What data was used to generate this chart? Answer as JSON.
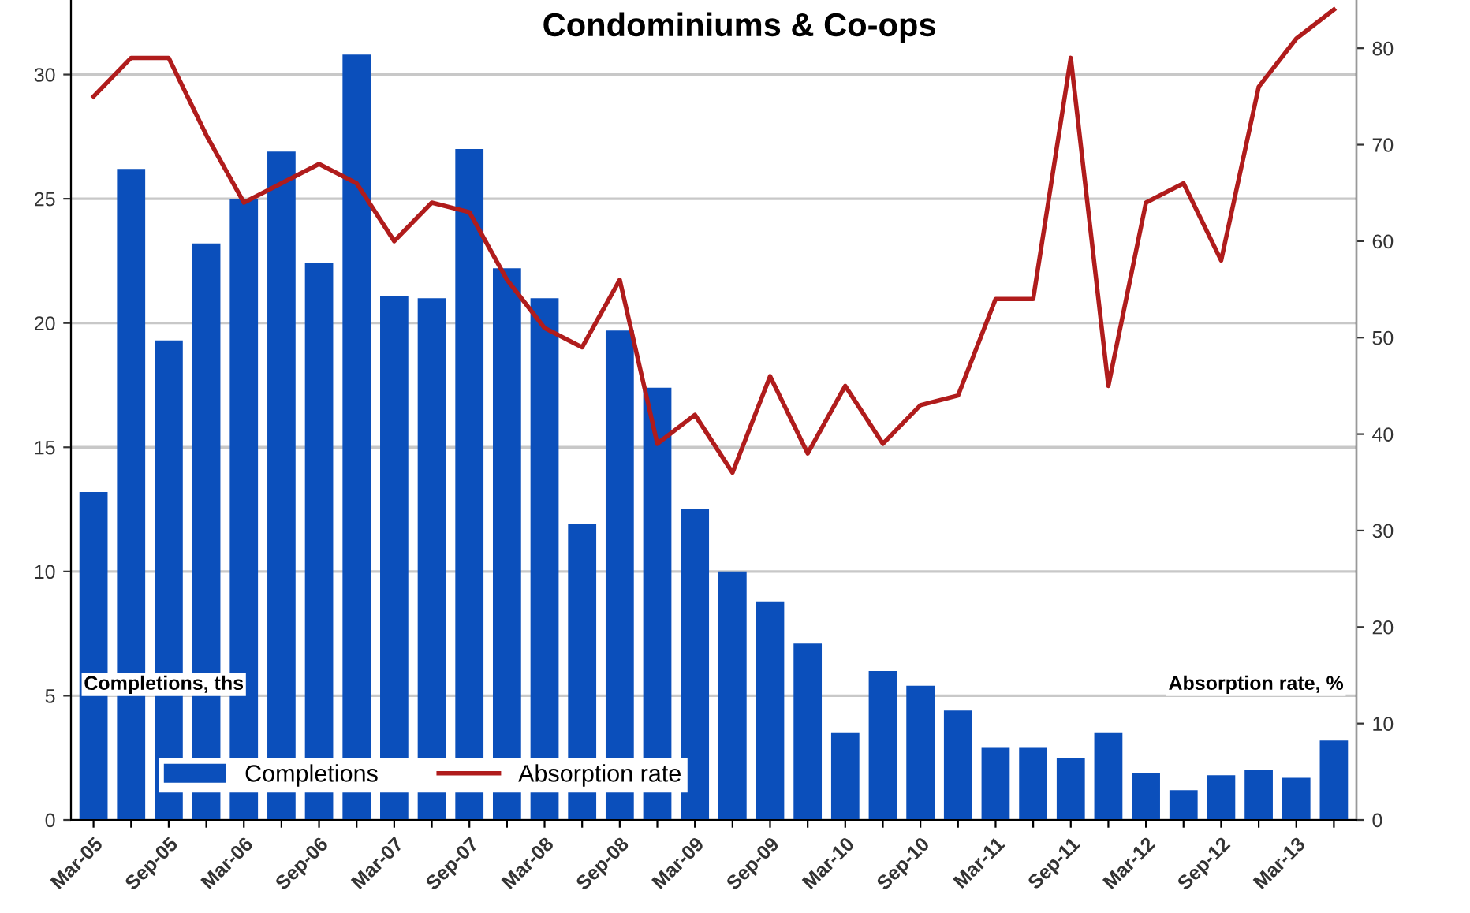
{
  "chart_data": {
    "type": "bar",
    "title": "Condominiums & Co-ops",
    "ylabel": "Completions, ths",
    "y2label": "Absorption rate, %",
    "categories": [
      "Mar-05",
      null,
      "Sep-05",
      null,
      "Mar-06",
      null,
      "Sep-06",
      null,
      "Mar-07",
      null,
      "Sep-07",
      null,
      "Mar-08",
      null,
      "Sep-08",
      null,
      "Mar-09",
      null,
      "Sep-09",
      null,
      "Mar-10",
      null,
      "Sep-10",
      null,
      "Mar-11",
      null,
      "Sep-11",
      null,
      "Mar-12",
      null,
      "Sep-12",
      null,
      "Mar-13",
      null
    ],
    "series": [
      {
        "name": "Completions",
        "color": "#0b4fbb",
        "values": [
          13.2,
          26.2,
          19.3,
          23.2,
          25,
          26.9,
          22.4,
          30.8,
          21.1,
          21,
          27,
          22.2,
          21,
          11.9,
          19.7,
          17.4,
          12.5,
          10,
          8.8,
          7.1,
          3.5,
          6,
          5.4,
          4.4,
          2.9,
          2.9,
          2.5,
          3.5,
          1.9,
          1.2,
          1.8,
          2,
          1.7,
          3.2
        ]
      },
      {
        "name": "Absorption rate",
        "type": "line",
        "axis": "y2",
        "color": "#b01c1c",
        "values": [
          75,
          79,
          79,
          71,
          64,
          66,
          68,
          66,
          60,
          64,
          63,
          56,
          51,
          49,
          56,
          39,
          42,
          36,
          46,
          38,
          45,
          39,
          43,
          44,
          54,
          54,
          79,
          45,
          64,
          66,
          58,
          76,
          81,
          84
        ]
      }
    ],
    "ylim": [
      0,
      33
    ],
    "yticks": [
      0,
      5,
      10,
      15,
      20,
      25,
      30
    ],
    "y2lim": [
      0,
      85
    ],
    "y2ticks": [
      0,
      10,
      20,
      30,
      40,
      50,
      60,
      70,
      80
    ],
    "grid": "y",
    "legend": "bottom left"
  }
}
